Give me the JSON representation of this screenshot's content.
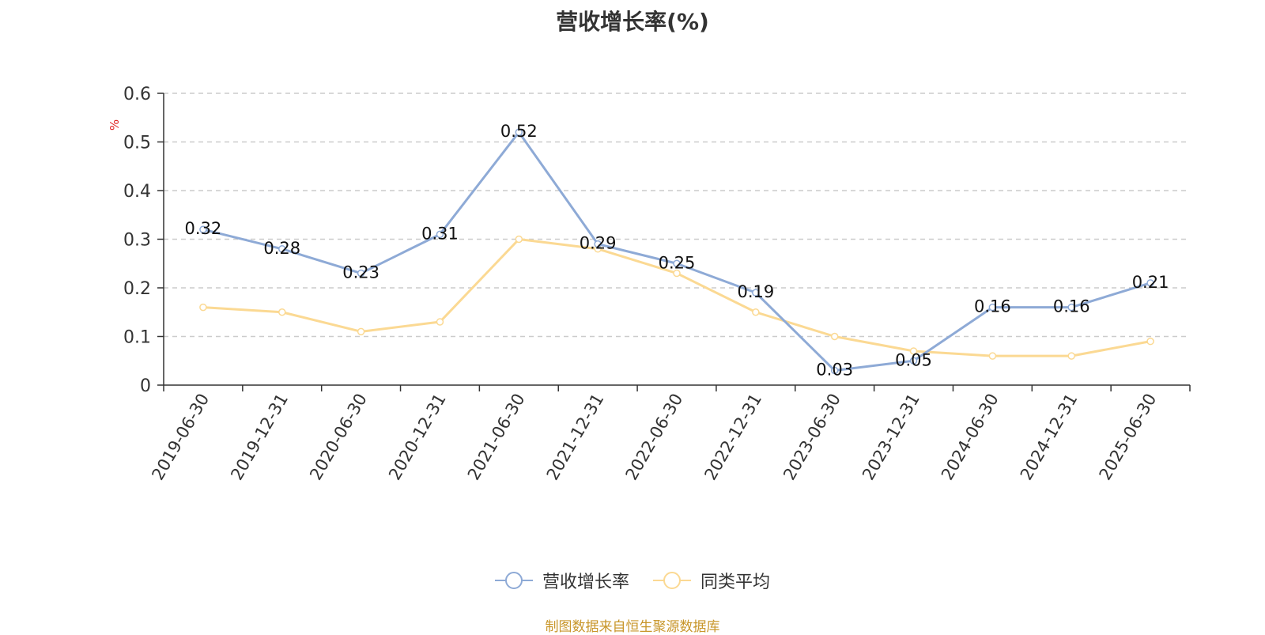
{
  "chart_data": {
    "type": "line",
    "title": "营收增长率(%)",
    "ylabel": "%",
    "ylim": [
      0,
      0.6
    ],
    "yticks": [
      0,
      0.1,
      0.2,
      0.3,
      0.4,
      0.5,
      0.6
    ],
    "ytick_labels": [
      "0",
      "0.1",
      "0.2",
      "0.3",
      "0.4",
      "0.5",
      "0.6"
    ],
    "grid": true,
    "legend_position": "bottom",
    "categories": [
      "2019-06-30",
      "2019-12-31",
      "2020-06-30",
      "2020-12-31",
      "2021-06-30",
      "2021-12-31",
      "2022-06-30",
      "2022-12-31",
      "2023-06-30",
      "2023-12-31",
      "2024-06-30",
      "2024-12-31",
      "2025-06-30"
    ],
    "series": [
      {
        "name": "营收增长率",
        "color": "#8eaad6",
        "show_labels": true,
        "labels": [
          "0.32",
          "0.28",
          "0.23",
          "0.31",
          "0.52",
          "0.29",
          "0.25",
          "0.19",
          "0.03",
          "0.05",
          "0.16",
          "0.16",
          "0.21"
        ],
        "values": [
          0.32,
          0.28,
          0.23,
          0.31,
          0.52,
          0.29,
          0.25,
          0.19,
          0.03,
          0.05,
          0.16,
          0.16,
          0.21
        ]
      },
      {
        "name": "同类平均",
        "color": "#fbd993",
        "show_labels": false,
        "values": [
          0.16,
          0.15,
          0.11,
          0.13,
          0.3,
          0.28,
          0.23,
          0.15,
          0.1,
          0.07,
          0.06,
          0.06,
          0.09
        ]
      }
    ]
  },
  "legend": {
    "items": [
      {
        "label": "营收增长率",
        "color": "#8eaad6"
      },
      {
        "label": "同类平均",
        "color": "#fbd993"
      }
    ]
  },
  "footer": {
    "source": "制图数据来自恒生聚源数据库"
  }
}
